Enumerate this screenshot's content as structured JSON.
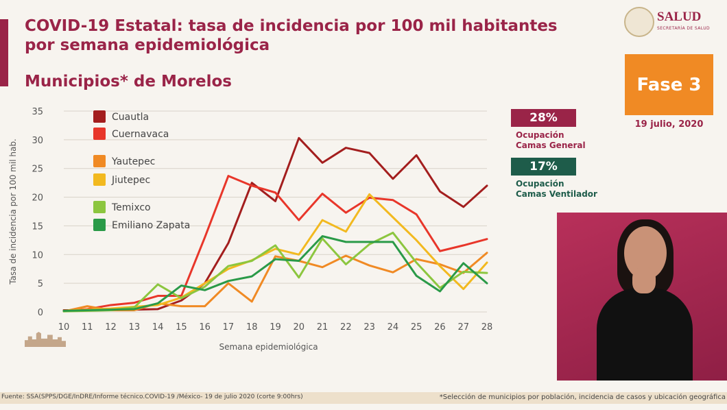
{
  "header": {
    "title": "COVID-19 Estatal: tasa de incidencia por 100 mil habitantes por semana epidemiológica",
    "subtitle": "Municipios* de Morelos"
  },
  "logo": {
    "text": "SALUD",
    "sub": "SECRETARÍA DE SALUD"
  },
  "phase": {
    "label": "Fase 3",
    "date": "19 julio, 2020"
  },
  "occupancy": {
    "general": {
      "value": "28%",
      "label_line1": "Ocupación",
      "label_line2": "Camas General",
      "color": "#9a2448"
    },
    "ventilator": {
      "value": "17%",
      "label_line1": "Ocupación",
      "label_line2": "Camas Ventilador",
      "color": "#1e5c4a"
    }
  },
  "footer": {
    "source": "Fuente: SSA(SPPS/DGE/InDRE/Informe técnico.COVID-19 /México- 19 de julio 2020 (corte 9:00hrs)",
    "note": "*Selección de municipios por población, incidencia de casos y ubicación geográfica"
  },
  "chart_data": {
    "type": "line",
    "xlabel": "Semana epidemiológica",
    "ylabel": "Tasa de incidencia por 100 mil hab.",
    "ylim": [
      0,
      35
    ],
    "yticks": [
      0,
      5,
      10,
      15,
      20,
      25,
      30,
      35
    ],
    "x": [
      10,
      11,
      12,
      13,
      14,
      15,
      16,
      17,
      18,
      19,
      20,
      21,
      22,
      23,
      24,
      25,
      26,
      27,
      28
    ],
    "grid": true,
    "legend_position": "top-left",
    "series": [
      {
        "name": "Cuautla",
        "color": "#a31e1e",
        "values": [
          0.3,
          0.3,
          0.3,
          0.4,
          0.5,
          2,
          5,
          12,
          22.5,
          19.3,
          30.3,
          26,
          28.6,
          27.7,
          23.2,
          27.3,
          21,
          18.3,
          22
        ]
      },
      {
        "name": "Cuernavaca",
        "color": "#e8362a",
        "values": [
          0.2,
          0.5,
          1.2,
          1.6,
          2.8,
          2.8,
          13,
          23.7,
          22,
          20.8,
          16,
          20.6,
          17.3,
          19.9,
          19.5,
          17,
          10.6,
          11.6,
          12.7
        ]
      },
      {
        "name": "Yautepec",
        "color": "#f08a24",
        "values": [
          0.1,
          1.0,
          0.3,
          0.3,
          1.5,
          1.0,
          1.0,
          5.0,
          1.8,
          9.7,
          8.9,
          7.8,
          9.8,
          8.1,
          6.9,
          9.2,
          8.3,
          6.8,
          10.3
        ]
      },
      {
        "name": "Jiutepec",
        "color": "#f2b91f",
        "values": [
          0.2,
          0.4,
          0.6,
          0.9,
          1.2,
          2.5,
          5,
          7.5,
          9,
          11,
          10,
          16,
          14,
          20.5,
          16.5,
          12.5,
          8,
          4,
          8.6
        ]
      },
      {
        "name": "Temixco",
        "color": "#8cc63f",
        "values": [
          0.1,
          0.2,
          0.3,
          0.8,
          4.8,
          2.4,
          4.4,
          8,
          8.9,
          11.6,
          6,
          12.8,
          8.3,
          11.8,
          13.8,
          8.6,
          4.2,
          7,
          6.8
        ]
      },
      {
        "name": "Emiliano Zapata",
        "color": "#2a9a48",
        "values": [
          0.2,
          0.3,
          0.4,
          0.5,
          1.5,
          4.6,
          3.8,
          5.4,
          6.2,
          9.2,
          8.9,
          13.2,
          12.2,
          12.2,
          12.2,
          6.3,
          3.6,
          8.5,
          5
        ]
      }
    ]
  }
}
